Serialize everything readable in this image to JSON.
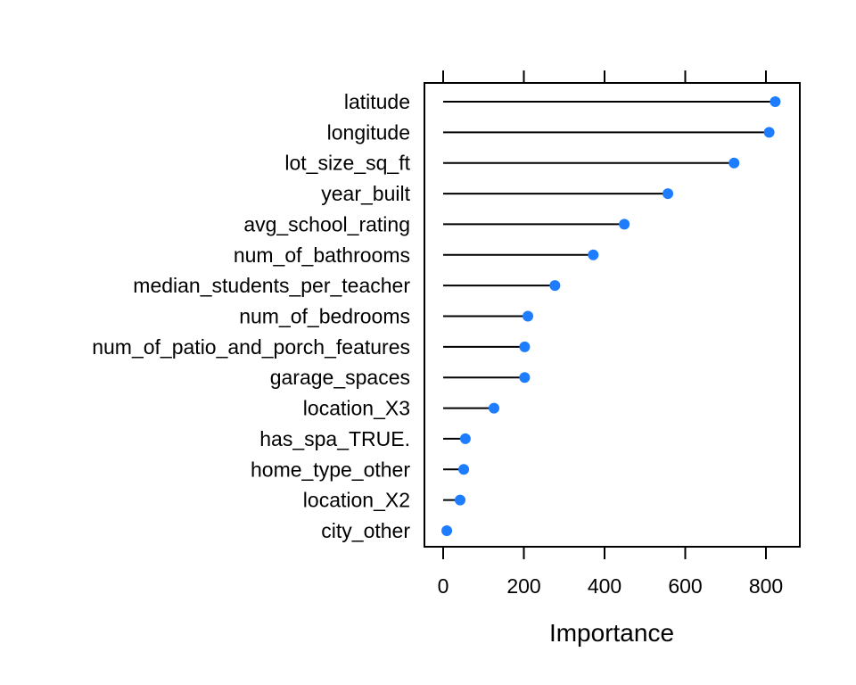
{
  "chart_data": {
    "type": "lollipop",
    "categories": [
      "latitude",
      "longitude",
      "lot_size_sq_ft",
      "year_built",
      "avg_school_rating",
      "num_of_bathrooms",
      "median_students_per_teacher",
      "num_of_bedrooms",
      "num_of_patio_and_porch_features",
      "garage_spaces",
      "location_X3",
      "has_spa_TRUE.",
      "home_type_other",
      "location_X2",
      "city_other"
    ],
    "values": [
      823,
      808,
      721,
      557,
      449,
      372,
      277,
      210,
      202,
      202,
      126,
      55,
      51,
      42,
      9
    ],
    "xlabel": "Importance",
    "ylabel": "",
    "xlim": [
      -45,
      885
    ],
    "xticks": [
      0,
      200,
      400,
      600,
      800
    ],
    "grid": false,
    "colors": {
      "point": "#1e7dff",
      "line": "#000000",
      "frame": "#000000"
    }
  }
}
